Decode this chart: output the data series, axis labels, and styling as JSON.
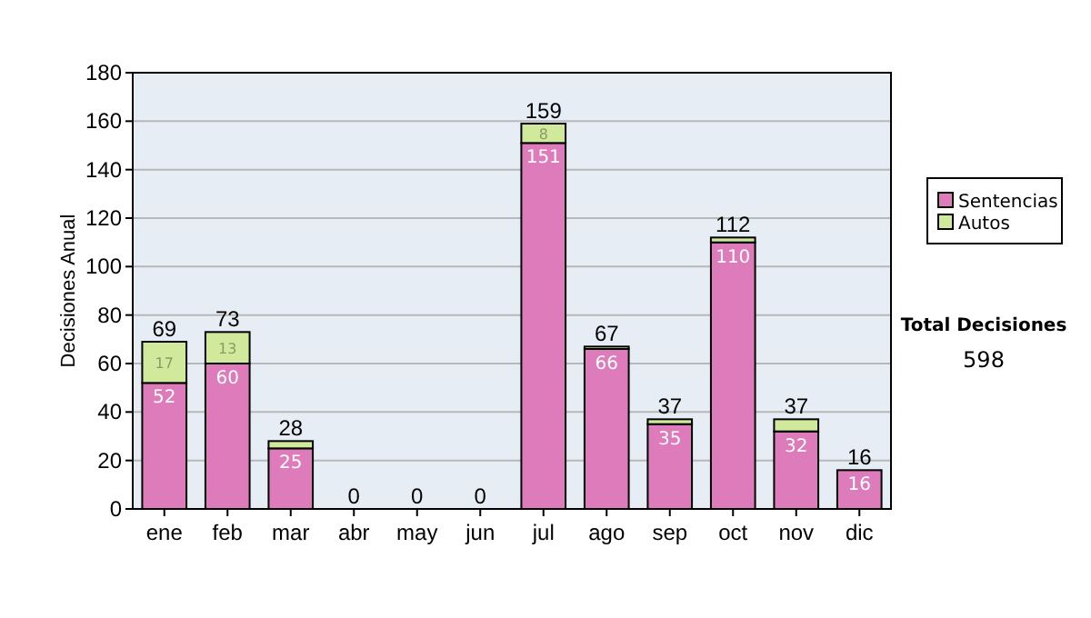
{
  "chart_data": {
    "type": "bar",
    "stacked": true,
    "ylabel": "Decisiones Anual",
    "categories": [
      "ene",
      "feb",
      "mar",
      "abr",
      "may",
      "jun",
      "jul",
      "ago",
      "sep",
      "oct",
      "nov",
      "dic"
    ],
    "series": [
      {
        "name": "Sentencias",
        "color": "#dd7bbb",
        "values": [
          52,
          60,
          25,
          0,
          0,
          0,
          151,
          66,
          35,
          110,
          32,
          16
        ],
        "value_labels": [
          "52",
          "60",
          "25",
          null,
          null,
          null,
          "151",
          "66",
          "35",
          "110",
          "32",
          "16"
        ]
      },
      {
        "name": "Autos",
        "color": "#d1e99a",
        "values": [
          17,
          13,
          3,
          0,
          0,
          0,
          8,
          1,
          2,
          2,
          5,
          0
        ],
        "value_labels": [
          "17",
          "13",
          null,
          null,
          null,
          null,
          "8",
          null,
          null,
          null,
          null,
          null
        ]
      }
    ],
    "totals": [
      "69",
      "73",
      "28",
      "0",
      "0",
      "0",
      "159",
      "67",
      "37",
      "112",
      "37",
      "16"
    ],
    "ylim": [
      0,
      180
    ],
    "yticks": [
      0,
      20,
      40,
      60,
      80,
      100,
      120,
      140,
      160,
      180
    ],
    "grid": "y",
    "legend": "right",
    "annotations": [
      "Total Decisiones",
      "598"
    ]
  }
}
